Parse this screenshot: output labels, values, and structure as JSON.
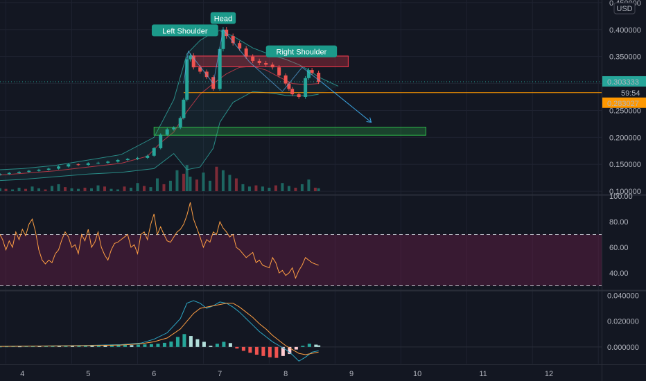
{
  "chart_data": [
    {
      "type": "candlestick",
      "currency": "USD",
      "y_ticks": [
        "0.450000",
        "0.400000",
        "0.350000",
        "0.300000",
        "0.250000",
        "0.200000",
        "0.150000",
        "0.100000"
      ],
      "ylim": [
        0.095,
        0.455
      ],
      "x_ticks": [
        "4",
        "5",
        "6",
        "7",
        "8",
        "9",
        "10",
        "11",
        "12"
      ],
      "last_price": "0.303333",
      "countdown": "59:54",
      "neckline_price": "0.283027",
      "neckline_value": 0.283027,
      "annotations": [
        {
          "text": "Head",
          "x": 7.05,
          "y": 0.421
        },
        {
          "text": "Left Shoulder",
          "x": 6.47,
          "y": 0.398
        },
        {
          "text": "Right Shoulder",
          "x": 8.24,
          "y": 0.359
        }
      ],
      "zones": [
        {
          "name": "resistance",
          "x0": 6.6,
          "x1": 8.95,
          "y0": 0.331,
          "y1": 0.351,
          "color": "#ff3b4e"
        },
        {
          "name": "support",
          "x0": 6.0,
          "x1": 10.13,
          "y0": 0.204,
          "y1": 0.219,
          "color": "#2fb84a"
        }
      ],
      "projection": {
        "x": [
          8.55,
          9.3
        ],
        "y": [
          0.302,
          0.228
        ]
      },
      "price_series": {
        "x": [
          3.66,
          3.8,
          3.95,
          4.1,
          4.25,
          4.4,
          4.55,
          4.7,
          4.85,
          5.0,
          5.15,
          5.3,
          5.45,
          5.6,
          5.75,
          5.9,
          6.0,
          6.1,
          6.2,
          6.3,
          6.4,
          6.45,
          6.5,
          6.55,
          6.6,
          6.7,
          6.8,
          6.9,
          7.0,
          7.05,
          7.1,
          7.2,
          7.3,
          7.4,
          7.5,
          7.6,
          7.7,
          7.8,
          7.9,
          8.0,
          8.05,
          8.1,
          8.2,
          8.3,
          8.35,
          8.4,
          8.5
        ],
        "close": [
          0.132,
          0.134,
          0.136,
          0.138,
          0.14,
          0.142,
          0.146,
          0.15,
          0.149,
          0.152,
          0.153,
          0.155,
          0.158,
          0.16,
          0.162,
          0.166,
          0.18,
          0.205,
          0.215,
          0.218,
          0.236,
          0.27,
          0.345,
          0.352,
          0.33,
          0.322,
          0.312,
          0.29,
          0.364,
          0.4,
          0.388,
          0.375,
          0.365,
          0.35,
          0.342,
          0.338,
          0.335,
          0.33,
          0.315,
          0.3,
          0.29,
          0.28,
          0.275,
          0.31,
          0.325,
          0.32,
          0.303
        ]
      },
      "bollinger_upper": {
        "x": [
          3.66,
          4.0,
          4.5,
          5.0,
          5.5,
          6.0,
          6.3,
          6.5,
          6.7,
          6.9,
          7.0,
          7.2,
          7.5,
          7.8,
          8.0,
          8.2,
          8.35,
          8.5,
          8.8
        ],
        "y": [
          0.14,
          0.142,
          0.148,
          0.158,
          0.168,
          0.2,
          0.27,
          0.355,
          0.38,
          0.395,
          0.398,
          0.388,
          0.366,
          0.352,
          0.345,
          0.335,
          0.325,
          0.312,
          0.295
        ]
      },
      "bollinger_lower": {
        "x": [
          3.66,
          4.0,
          4.5,
          5.0,
          5.5,
          6.0,
          6.3,
          6.5,
          6.7,
          6.9,
          7.0,
          7.2,
          7.5,
          7.8,
          8.0,
          8.2,
          8.35,
          8.5
        ],
        "y": [
          0.12,
          0.122,
          0.127,
          0.132,
          0.135,
          0.142,
          0.17,
          0.14,
          0.145,
          0.18,
          0.228,
          0.265,
          0.285,
          0.282,
          0.278,
          0.277,
          0.277,
          0.28
        ]
      },
      "volume": {
        "x": [
          3.66,
          3.75,
          3.85,
          3.95,
          4.05,
          4.15,
          4.25,
          4.35,
          4.45,
          4.55,
          4.65,
          4.75,
          4.85,
          4.95,
          5.05,
          5.15,
          5.25,
          5.35,
          5.45,
          5.55,
          5.65,
          5.75,
          5.85,
          5.95,
          6.05,
          6.15,
          6.25,
          6.35,
          6.45,
          6.5,
          6.55,
          6.65,
          6.75,
          6.85,
          6.95,
          7.05,
          7.15,
          7.25,
          7.35,
          7.45,
          7.55,
          7.65,
          7.75,
          7.85,
          7.95,
          8.05,
          8.15,
          8.25,
          8.35,
          8.45,
          8.5
        ],
        "v": [
          5,
          4,
          3,
          6,
          4,
          8,
          5,
          3,
          9,
          12,
          7,
          5,
          4,
          6,
          5,
          10,
          8,
          4,
          3,
          8,
          6,
          14,
          9,
          7,
          22,
          12,
          18,
          36,
          30,
          45,
          25,
          20,
          32,
          18,
          42,
          36,
          28,
          22,
          12,
          8,
          10,
          8,
          6,
          10,
          14,
          9,
          6,
          12,
          20,
          6,
          5
        ],
        "ylim": [
          0,
          50
        ]
      }
    },
    {
      "type": "line",
      "indicator": "RSI",
      "y_ticks": [
        "100.00",
        "80.00",
        "60.00",
        "40.00"
      ],
      "ylim": [
        27,
        100
      ],
      "band": [
        30,
        70
      ],
      "series": [
        {
          "x": [
            3.66,
            3.7,
            3.75,
            3.8,
            3.85,
            3.9,
            3.95,
            4.0,
            4.05,
            4.1,
            4.15,
            4.2,
            4.25,
            4.3,
            4.35,
            4.4,
            4.45,
            4.5,
            4.55,
            4.6,
            4.65,
            4.7,
            4.75,
            4.8,
            4.85,
            4.9,
            4.95,
            5.0,
            5.05,
            5.1,
            5.15,
            5.2,
            5.25,
            5.3,
            5.35,
            5.4,
            5.45,
            5.5,
            5.55,
            5.6,
            5.65,
            5.7,
            5.75,
            5.8,
            5.85,
            5.9,
            5.95,
            6.0,
            6.05,
            6.1,
            6.15,
            6.2,
            6.25,
            6.3,
            6.35,
            6.4,
            6.45,
            6.5,
            6.55,
            6.6,
            6.65,
            6.7,
            6.75,
            6.8,
            6.85,
            6.9,
            6.95,
            7.0,
            7.05,
            7.1,
            7.15,
            7.2,
            7.25,
            7.3,
            7.35,
            7.4,
            7.45,
            7.5,
            7.55,
            7.6,
            7.65,
            7.7,
            7.75,
            7.8,
            7.85,
            7.9,
            7.95,
            8.0,
            8.05,
            8.1,
            8.15,
            8.2,
            8.25,
            8.3,
            8.35,
            8.4,
            8.5
          ],
          "y": [
            70,
            66,
            58,
            65,
            60,
            72,
            66,
            74,
            69,
            78,
            82,
            72,
            58,
            50,
            47,
            50,
            48,
            55,
            58,
            66,
            72,
            68,
            60,
            62,
            55,
            70,
            65,
            74,
            60,
            64,
            72,
            60,
            54,
            50,
            58,
            63,
            64,
            66,
            68,
            70,
            60,
            62,
            55,
            70,
            72,
            66,
            78,
            86,
            70,
            76,
            70,
            65,
            64,
            68,
            72,
            74,
            78,
            85,
            95,
            82,
            75,
            68,
            60,
            66,
            64,
            72,
            70,
            80,
            75,
            72,
            68,
            70,
            60,
            58,
            55,
            52,
            54,
            56,
            48,
            50,
            46,
            45,
            44,
            52,
            48,
            40,
            42,
            38,
            40,
            44,
            36,
            42,
            46,
            52,
            50,
            48,
            46
          ]
        }
      ]
    },
    {
      "type": "line",
      "indicator": "MACD",
      "y_ticks": [
        "0.040000",
        "0.020000",
        "0.000000"
      ],
      "ylim": [
        -0.013,
        0.043
      ],
      "series": [
        {
          "color": "#2ea8c6",
          "x": [
            3.66,
            4.0,
            4.5,
            5.0,
            5.5,
            5.8,
            6.0,
            6.2,
            6.4,
            6.5,
            6.6,
            6.7,
            6.8,
            6.9,
            7.0,
            7.1,
            7.2,
            7.3,
            7.4,
            7.5,
            7.6,
            7.7,
            7.8,
            7.9,
            8.0,
            8.1,
            8.2,
            8.3,
            8.4,
            8.5
          ],
          "y": [
            0.0005,
            0.0007,
            0.0009,
            0.0012,
            0.0018,
            0.003,
            0.006,
            0.011,
            0.022,
            0.034,
            0.036,
            0.034,
            0.03,
            0.032,
            0.035,
            0.034,
            0.031,
            0.027,
            0.022,
            0.017,
            0.012,
            0.008,
            0.004,
            0.001,
            -0.002,
            -0.006,
            -0.011,
            -0.008,
            -0.004,
            -0.003
          ]
        },
        {
          "color": "#ff9f43",
          "x": [
            3.66,
            4.0,
            4.5,
            5.0,
            5.5,
            5.8,
            6.0,
            6.2,
            6.4,
            6.5,
            6.6,
            6.7,
            6.8,
            6.9,
            7.0,
            7.1,
            7.2,
            7.3,
            7.4,
            7.5,
            7.6,
            7.7,
            7.8,
            7.9,
            8.0,
            8.1,
            8.2,
            8.3,
            8.4,
            8.5
          ],
          "y": [
            0.0004,
            0.0006,
            0.0008,
            0.001,
            0.0015,
            0.0025,
            0.004,
            0.007,
            0.014,
            0.02,
            0.026,
            0.03,
            0.031,
            0.032,
            0.033,
            0.034,
            0.034,
            0.031,
            0.027,
            0.023,
            0.018,
            0.014,
            0.009,
            0.005,
            0.001,
            -0.002,
            -0.005,
            -0.006,
            -0.005,
            -0.004
          ]
        }
      ],
      "histogram": {
        "x": [
          3.66,
          3.76,
          3.86,
          3.96,
          4.06,
          4.16,
          4.26,
          4.36,
          4.46,
          4.56,
          4.66,
          4.76,
          4.86,
          4.96,
          5.06,
          5.16,
          5.26,
          5.36,
          5.46,
          5.56,
          5.66,
          5.76,
          5.86,
          5.96,
          6.06,
          6.16,
          6.26,
          6.36,
          6.46,
          6.56,
          6.66,
          6.76,
          6.86,
          6.96,
          7.06,
          7.16,
          7.26,
          7.36,
          7.46,
          7.56,
          7.66,
          7.76,
          7.86,
          7.96,
          8.06,
          8.16,
          8.26,
          8.36,
          8.46,
          8.5
        ],
        "v": [
          0.0003,
          0.0004,
          0.0005,
          0.0004,
          0.0006,
          0.0008,
          0.0006,
          0.0009,
          0.001,
          0.0008,
          0.0012,
          0.0009,
          0.001,
          0.0012,
          0.0011,
          0.0014,
          0.0012,
          0.0013,
          0.0015,
          0.0017,
          0.0014,
          0.0018,
          0.002,
          0.0022,
          0.0025,
          0.0032,
          0.0042,
          0.0078,
          0.01,
          0.0085,
          0.006,
          0.004,
          0.001,
          0.0025,
          0.004,
          0.003,
          -0.0012,
          -0.003,
          -0.0045,
          -0.006,
          -0.007,
          -0.008,
          -0.0085,
          -0.007,
          -0.0055,
          -0.002,
          0.001,
          0.0025,
          0.0018,
          0.0012
        ]
      }
    }
  ]
}
